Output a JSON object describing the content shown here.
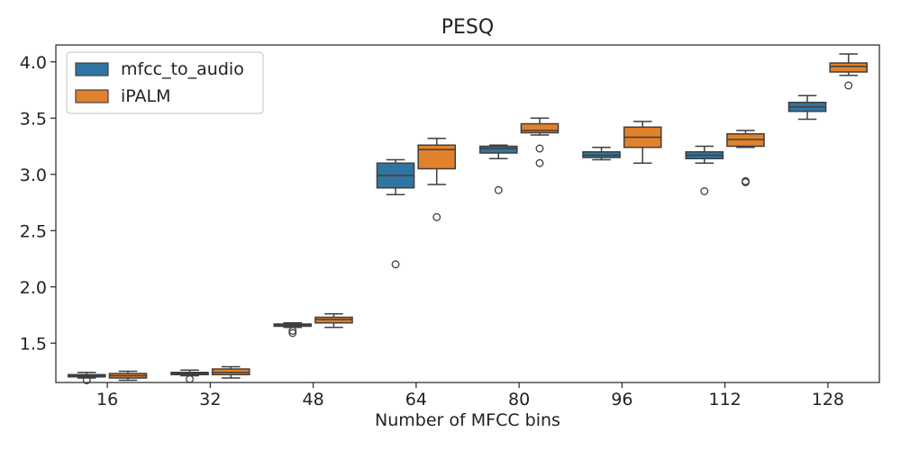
{
  "chart_data": {
    "type": "box",
    "title": "PESQ",
    "xlabel": "Number of MFCC bins",
    "ylabel": "",
    "categories": [
      "16",
      "32",
      "48",
      "64",
      "80",
      "96",
      "112",
      "128"
    ],
    "yticks": [
      1.5,
      2.0,
      2.5,
      3.0,
      3.5,
      4.0
    ],
    "ytick_labels": [
      "1.5",
      "2.0",
      "2.5",
      "3.0",
      "3.5",
      "4.0"
    ],
    "ylim": [
      1.15,
      4.15
    ],
    "legend_position": "top-left",
    "series": [
      {
        "name": "mfcc_to_audio",
        "color": "#3274a1",
        "boxes": [
          {
            "whislo": 1.19,
            "q1": 1.2,
            "med": 1.21,
            "q3": 1.22,
            "whishi": 1.24,
            "fliers": [
              1.17
            ]
          },
          {
            "whislo": 1.21,
            "q1": 1.22,
            "med": 1.23,
            "q3": 1.24,
            "whishi": 1.26,
            "fliers": [
              1.18
            ]
          },
          {
            "whislo": 1.64,
            "q1": 1.65,
            "med": 1.66,
            "q3": 1.67,
            "whishi": 1.68,
            "fliers": [
              1.59,
              1.61
            ]
          },
          {
            "whislo": 2.82,
            "q1": 2.88,
            "med": 2.99,
            "q3": 3.1,
            "whishi": 3.13,
            "fliers": [
              2.2
            ]
          },
          {
            "whislo": 3.14,
            "q1": 3.19,
            "med": 3.23,
            "q3": 3.25,
            "whishi": 3.26,
            "fliers": [
              2.86
            ]
          },
          {
            "whislo": 3.13,
            "q1": 3.15,
            "med": 3.17,
            "q3": 3.2,
            "whishi": 3.24,
            "fliers": []
          },
          {
            "whislo": 3.1,
            "q1": 3.14,
            "med": 3.17,
            "q3": 3.2,
            "whishi": 3.25,
            "fliers": [
              2.85
            ]
          },
          {
            "whislo": 3.49,
            "q1": 3.56,
            "med": 3.6,
            "q3": 3.64,
            "whishi": 3.7,
            "fliers": []
          }
        ]
      },
      {
        "name": "iPALM",
        "color": "#e1812c",
        "boxes": [
          {
            "whislo": 1.17,
            "q1": 1.19,
            "med": 1.21,
            "q3": 1.23,
            "whishi": 1.25,
            "fliers": []
          },
          {
            "whislo": 1.19,
            "q1": 1.22,
            "med": 1.24,
            "q3": 1.27,
            "whishi": 1.29,
            "fliers": []
          },
          {
            "whislo": 1.64,
            "q1": 1.68,
            "med": 1.71,
            "q3": 1.73,
            "whishi": 1.76,
            "fliers": []
          },
          {
            "whislo": 2.91,
            "q1": 3.05,
            "med": 3.22,
            "q3": 3.26,
            "whishi": 3.32,
            "fliers": [
              2.62
            ]
          },
          {
            "whislo": 3.35,
            "q1": 3.37,
            "med": 3.39,
            "q3": 3.45,
            "whishi": 3.5,
            "fliers": [
              3.1,
              3.23
            ]
          },
          {
            "whislo": 3.1,
            "q1": 3.24,
            "med": 3.33,
            "q3": 3.42,
            "whishi": 3.47,
            "fliers": []
          },
          {
            "whislo": 3.24,
            "q1": 3.25,
            "med": 3.31,
            "q3": 3.36,
            "whishi": 3.39,
            "fliers": [
              2.93,
              2.94
            ]
          },
          {
            "whislo": 3.88,
            "q1": 3.91,
            "med": 3.96,
            "q3": 3.99,
            "whishi": 4.07,
            "fliers": [
              3.79
            ]
          }
        ]
      }
    ]
  }
}
